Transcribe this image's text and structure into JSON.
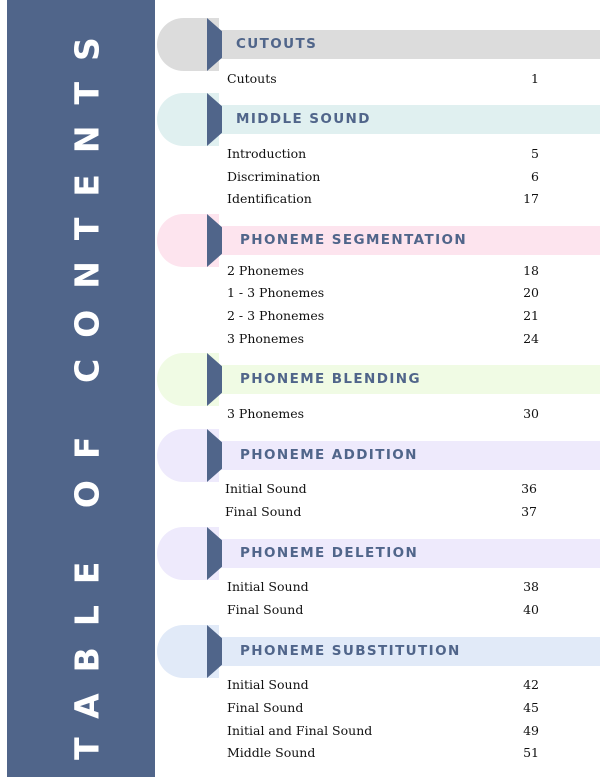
{
  "title": "TABLE OF CONTENTS",
  "sections": [
    {
      "heading": "CUTOUTS",
      "color": "#dcdcdc",
      "entries": [
        {
          "label": "Cutouts",
          "page": "1"
        }
      ]
    },
    {
      "heading": "MIDDLE SOUND",
      "color": "#e0f0f0",
      "entries": [
        {
          "label": "Introduction",
          "page": "5"
        },
        {
          "label": "Discrimination",
          "page": "6"
        },
        {
          "label": "Identification",
          "page": "17"
        }
      ]
    },
    {
      "heading": "PHONEME SEGMENTATION",
      "color": "#fde4ee",
      "entries": [
        {
          "label": "2 Phonemes",
          "page": "18"
        },
        {
          "label": "1 - 3 Phonemes",
          "page": "20"
        },
        {
          "label": "2 - 3 Phonemes",
          "page": "21"
        },
        {
          "label": "3 Phonemes",
          "page": "24"
        }
      ]
    },
    {
      "heading": "PHONEME BLENDING",
      "color": "#f0fbe4",
      "entries": [
        {
          "label": "3 Phonemes",
          "page": "30"
        }
      ]
    },
    {
      "heading": "PHONEME ADDITION",
      "color": "#eeeafc",
      "entries": [
        {
          "label": "Initial Sound",
          "page": "36"
        },
        {
          "label": "Final Sound",
          "page": "37"
        }
      ]
    },
    {
      "heading": "PHONEME DELETION",
      "color": "#eeeafc",
      "entries": [
        {
          "label": "Initial Sound",
          "page": "38"
        },
        {
          "label": "Final Sound",
          "page": "40"
        }
      ]
    },
    {
      "heading": "PHONEME SUBSTITUTION",
      "color": "#e1eaf8",
      "entries": [
        {
          "label": "Initial Sound",
          "page": "42"
        },
        {
          "label": "Final Sound",
          "page": "45"
        },
        {
          "label": "Initial and Final Sound",
          "page": "49"
        },
        {
          "label": "Middle Sound",
          "page": "51"
        }
      ]
    }
  ]
}
